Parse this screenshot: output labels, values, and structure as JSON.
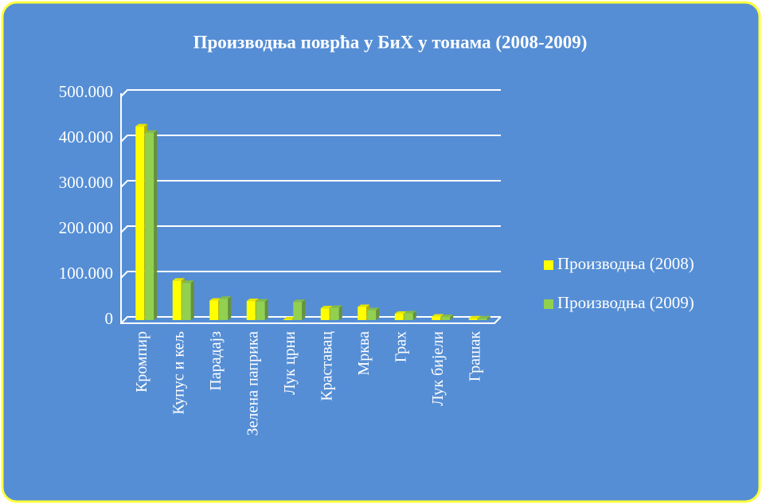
{
  "chart_data": {
    "type": "bar",
    "title": "Производња поврћа у БиХ у тонама (2008-2009)",
    "categories": [
      "Кромпир",
      "Купус и кељ",
      "Парадајз",
      "Зелена паприка",
      "Лук црни",
      "Краставац",
      "Мрква",
      "Грах",
      "Лук бијели",
      "Грашак"
    ],
    "series": [
      {
        "name": "Производња (2008)",
        "color": "#ffff00",
        "values": [
          427000,
          87000,
          43000,
          42000,
          2000,
          26000,
          29000,
          14000,
          8000,
          4000
        ]
      },
      {
        "name": "Производња (2009)",
        "color": "#92d050",
        "values": [
          413000,
          82000,
          47000,
          41000,
          40000,
          27000,
          22000,
          15000,
          7000,
          4000
        ]
      }
    ],
    "ylim": [
      0,
      500000
    ],
    "yticks": [
      0,
      {
        "value": 100000,
        "label": "100.000"
      },
      {
        "value": 200000,
        "label": "200.000"
      },
      {
        "value": 300000,
        "label": "300.000"
      },
      {
        "value": 400000,
        "label": "400.000"
      },
      {
        "value": 500000,
        "label": "500.000"
      }
    ],
    "grid": true,
    "legend": "right"
  }
}
